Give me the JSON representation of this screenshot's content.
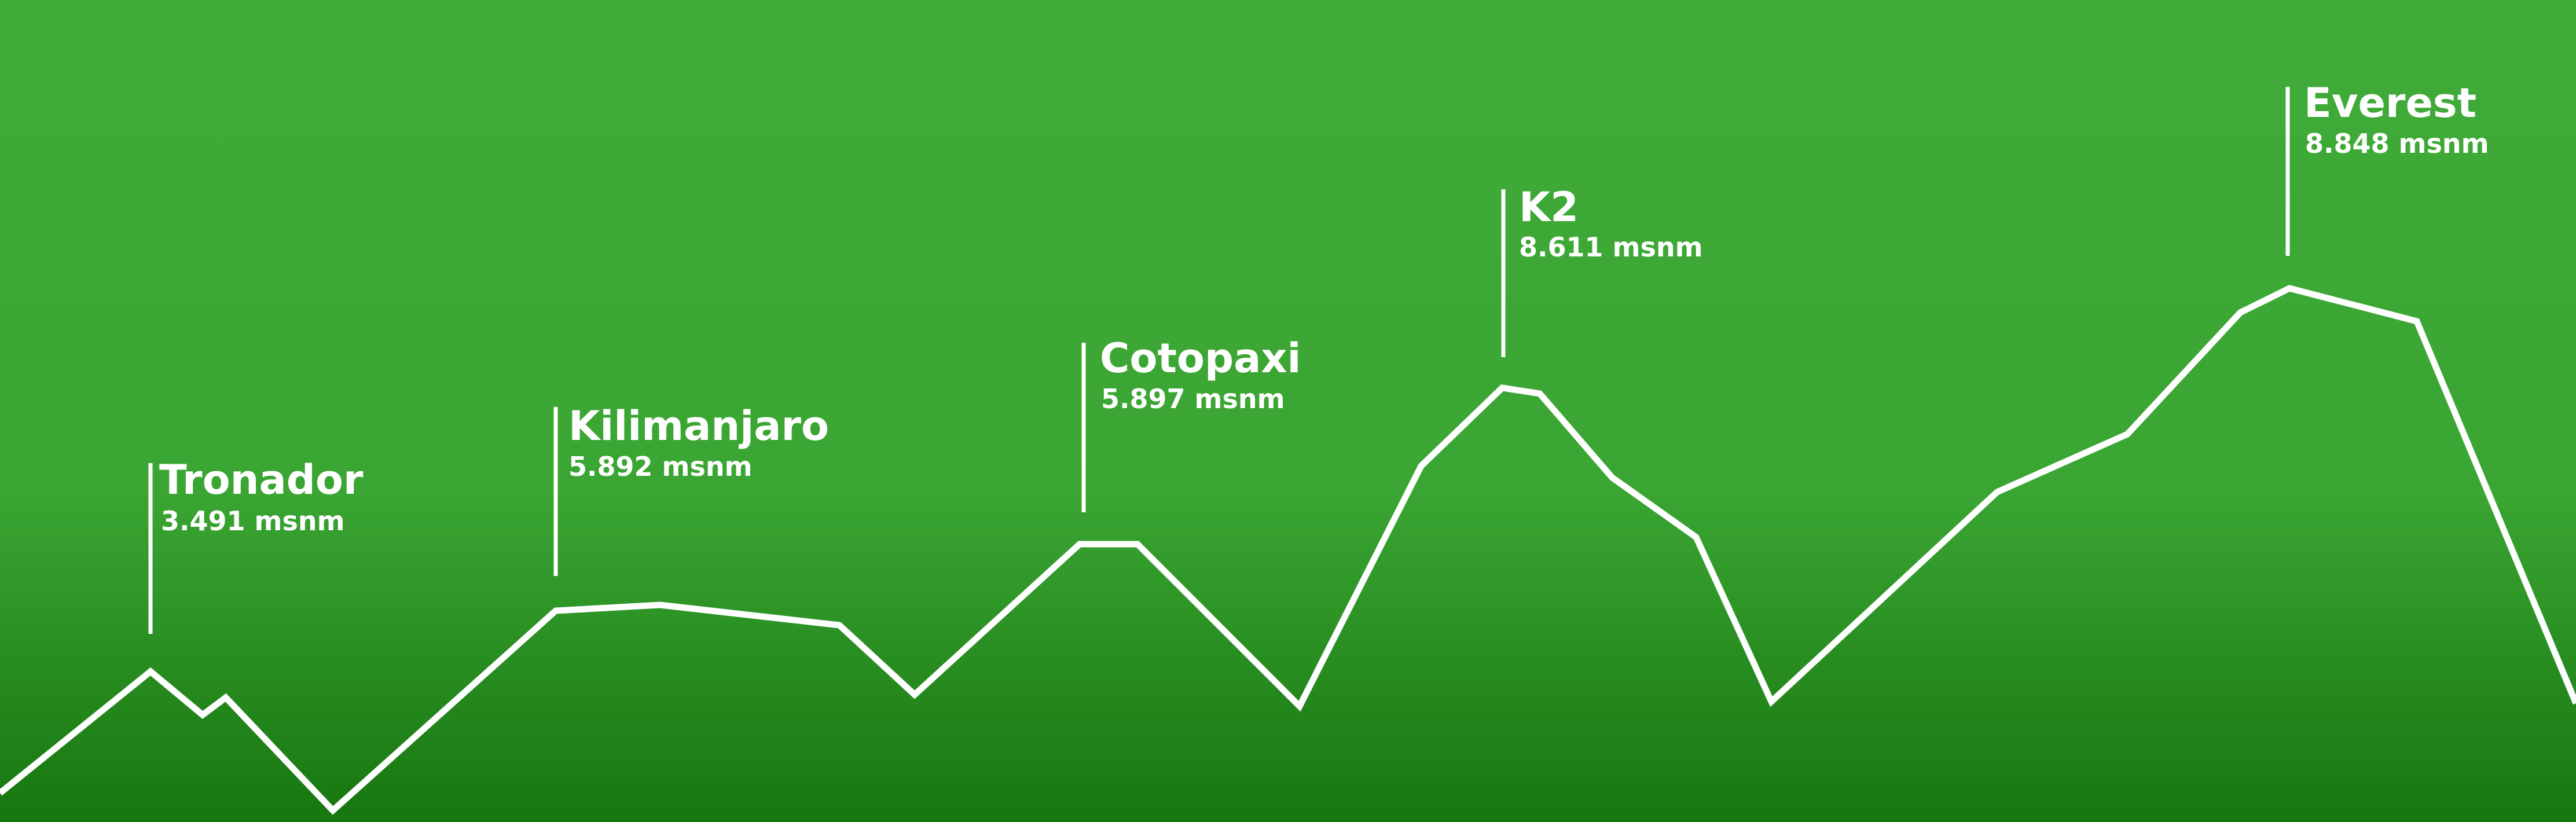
{
  "background": {
    "top_color": "#40ab38",
    "mid_color": "#3aa533",
    "bottom_color": "#17760f"
  },
  "line_color": "#ffffff",
  "peaks": [
    {
      "id": "tronador",
      "name": "Tronador",
      "altitude": "3.491 msnm"
    },
    {
      "id": "kilimanjaro",
      "name": "Kilimanjaro",
      "altitude": "5.892 msnm"
    },
    {
      "id": "cotopaxi",
      "name": "Cotopaxi",
      "altitude": "5.897 msnm"
    },
    {
      "id": "k2",
      "name": "K2",
      "altitude": "8.611 msnm"
    },
    {
      "id": "everest",
      "name": "Everest",
      "altitude": "8.848 msnm"
    }
  ]
}
